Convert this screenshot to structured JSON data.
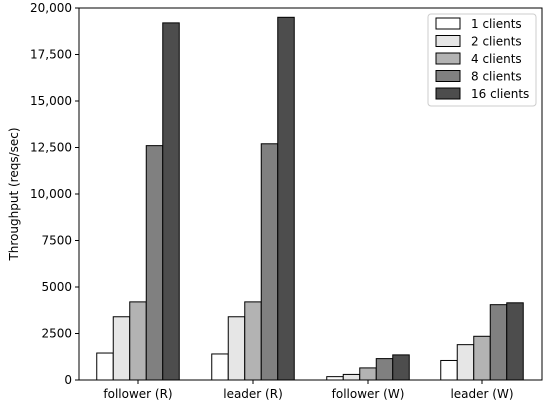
{
  "chart_data": {
    "type": "bar",
    "title": "",
    "xlabel": "",
    "ylabel": "Throughput (reqs/sec)",
    "ylim": [
      0,
      20000
    ],
    "yticks": [
      0,
      2500,
      5000,
      7500,
      10000,
      12500,
      15000,
      17500,
      20000
    ],
    "ytick_labels": [
      "0",
      "2500",
      "5000",
      "7500",
      "10,000",
      "12,500",
      "15,000",
      "17,500",
      "20,000"
    ],
    "categories": [
      "follower (R)",
      "leader (R)",
      "follower (W)",
      "leader (W)"
    ],
    "grid": false,
    "legend_position": "top-right",
    "series": [
      {
        "name": "1 clients",
        "color": "#ffffff",
        "values": [
          1450,
          1400,
          180,
          1050
        ]
      },
      {
        "name": "2 clients",
        "color": "#e6e6e6",
        "values": [
          3400,
          3400,
          300,
          1900
        ]
      },
      {
        "name": "4 clients",
        "color": "#b3b3b3",
        "values": [
          4200,
          4200,
          650,
          2350
        ]
      },
      {
        "name": "8 clients",
        "color": "#808080",
        "values": [
          12600,
          12700,
          1150,
          4050
        ]
      },
      {
        "name": "16 clients",
        "color": "#4d4d4d",
        "values": [
          19200,
          19500,
          1350,
          4150
        ]
      }
    ]
  }
}
